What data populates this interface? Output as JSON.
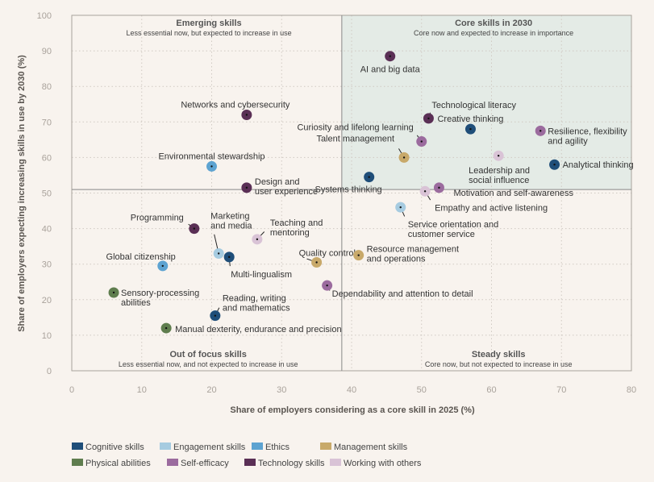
{
  "chart_data": {
    "type": "scatter",
    "xlabel": "Share of employers considering as a core skill in 2025 (%)",
    "ylabel": "Share of employers expecting increasing skills in use by 2030 (%)",
    "xlim": [
      0,
      80
    ],
    "ylim": [
      0,
      100
    ],
    "x_ticks": [
      "0",
      "10",
      "20",
      "30",
      "40",
      "50",
      "60",
      "70",
      "80"
    ],
    "y_ticks": [
      "0",
      "10",
      "20",
      "30",
      "40",
      "50",
      "60",
      "70",
      "80",
      "90",
      "100"
    ],
    "grid": true,
    "legend_position": "bottom-left",
    "divider": {
      "x": 38.6,
      "y": 51
    },
    "quadrants": [
      {
        "id": "emerging",
        "title": "Emerging skills",
        "subtitle": "Less essential now, but expected to increase in use"
      },
      {
        "id": "core",
        "title": "Core skills in 2030",
        "subtitle": "Core now and expected to increase in importance"
      },
      {
        "id": "out-of-focus",
        "title": "Out of focus skills",
        "subtitle": "Less essential now, and not expected to increase in use"
      },
      {
        "id": "steady",
        "title": "Steady skills",
        "subtitle": "Core now, but not expected to increase in use"
      }
    ],
    "categories": [
      {
        "name": "Cognitive skills",
        "color": "#1f4e79"
      },
      {
        "name": "Engagement skills",
        "color": "#a6cbe0"
      },
      {
        "name": "Ethics",
        "color": "#5da3d1"
      },
      {
        "name": "Management skills",
        "color": "#c8a96a"
      },
      {
        "name": "Physical abilities",
        "color": "#5f7d4e"
      },
      {
        "name": "Self-efficacy",
        "color": "#9b6b9e"
      },
      {
        "name": "Technology skills",
        "color": "#5a2f55"
      },
      {
        "name": "Working with others",
        "color": "#d9c3d6"
      }
    ],
    "points": [
      {
        "label": "AI and big data",
        "category": "Technology skills",
        "x": 45.5,
        "y": 88.5
      },
      {
        "label": "Networks and cybersecurity",
        "category": "Technology skills",
        "x": 25,
        "y": 72
      },
      {
        "label": "Technological literacy",
        "category": "Technology skills",
        "x": 51,
        "y": 71
      },
      {
        "label": "Creative thinking",
        "category": "Cognitive skills",
        "x": 57,
        "y": 68
      },
      {
        "label": "Resilience, flexibility and agility",
        "category": "Self-efficacy",
        "x": 67,
        "y": 67.5
      },
      {
        "label": "Curiosity and lifelong learning",
        "category": "Self-efficacy",
        "x": 50,
        "y": 64.5
      },
      {
        "label": "Talent management",
        "category": "Management skills",
        "x": 47.5,
        "y": 60
      },
      {
        "label": "Leadership and social influence",
        "category": "Working with others",
        "x": 61,
        "y": 60.5
      },
      {
        "label": "Analytical thinking",
        "category": "Cognitive skills",
        "x": 69,
        "y": 58
      },
      {
        "label": "Environmental stewardship",
        "category": "Ethics",
        "x": 20,
        "y": 57.5
      },
      {
        "label": "Systems thinking",
        "category": "Cognitive skills",
        "x": 42.5,
        "y": 54.5
      },
      {
        "label": "Design and user experience",
        "category": "Technology skills",
        "x": 25,
        "y": 51.5
      },
      {
        "label": "Motivation and self-awareness",
        "category": "Self-efficacy",
        "x": 52.5,
        "y": 51.5
      },
      {
        "label": "Empathy and active listening",
        "category": "Working with others",
        "x": 50.5,
        "y": 50.5
      },
      {
        "label": "Service orientation and customer service",
        "category": "Engagement skills",
        "x": 47,
        "y": 46
      },
      {
        "label": "Programming",
        "category": "Technology skills",
        "x": 17.5,
        "y": 40
      },
      {
        "label": "Marketing and media",
        "category": "Engagement skills",
        "x": 21,
        "y": 33
      },
      {
        "label": "Teaching and mentoring",
        "category": "Working with others",
        "x": 26.5,
        "y": 37
      },
      {
        "label": "Multi-lingualism",
        "category": "Cognitive skills",
        "x": 22.5,
        "y": 32
      },
      {
        "label": "Global citizenship",
        "category": "Ethics",
        "x": 13,
        "y": 29.5
      },
      {
        "label": "Quality control",
        "category": "Management skills",
        "x": 35,
        "y": 30.5
      },
      {
        "label": "Resource management and operations",
        "category": "Management skills",
        "x": 41,
        "y": 32.5
      },
      {
        "label": "Dependability and attention to detail",
        "category": "Self-efficacy",
        "x": 36.5,
        "y": 24
      },
      {
        "label": "Sensory-processing abilities",
        "category": "Physical abilities",
        "x": 6,
        "y": 22
      },
      {
        "label": "Reading, writing and mathematics",
        "category": "Cognitive skills",
        "x": 20.5,
        "y": 15.5
      },
      {
        "label": "Manual dexterity, endurance and precision",
        "category": "Physical abilities",
        "x": 13.5,
        "y": 12
      }
    ]
  }
}
